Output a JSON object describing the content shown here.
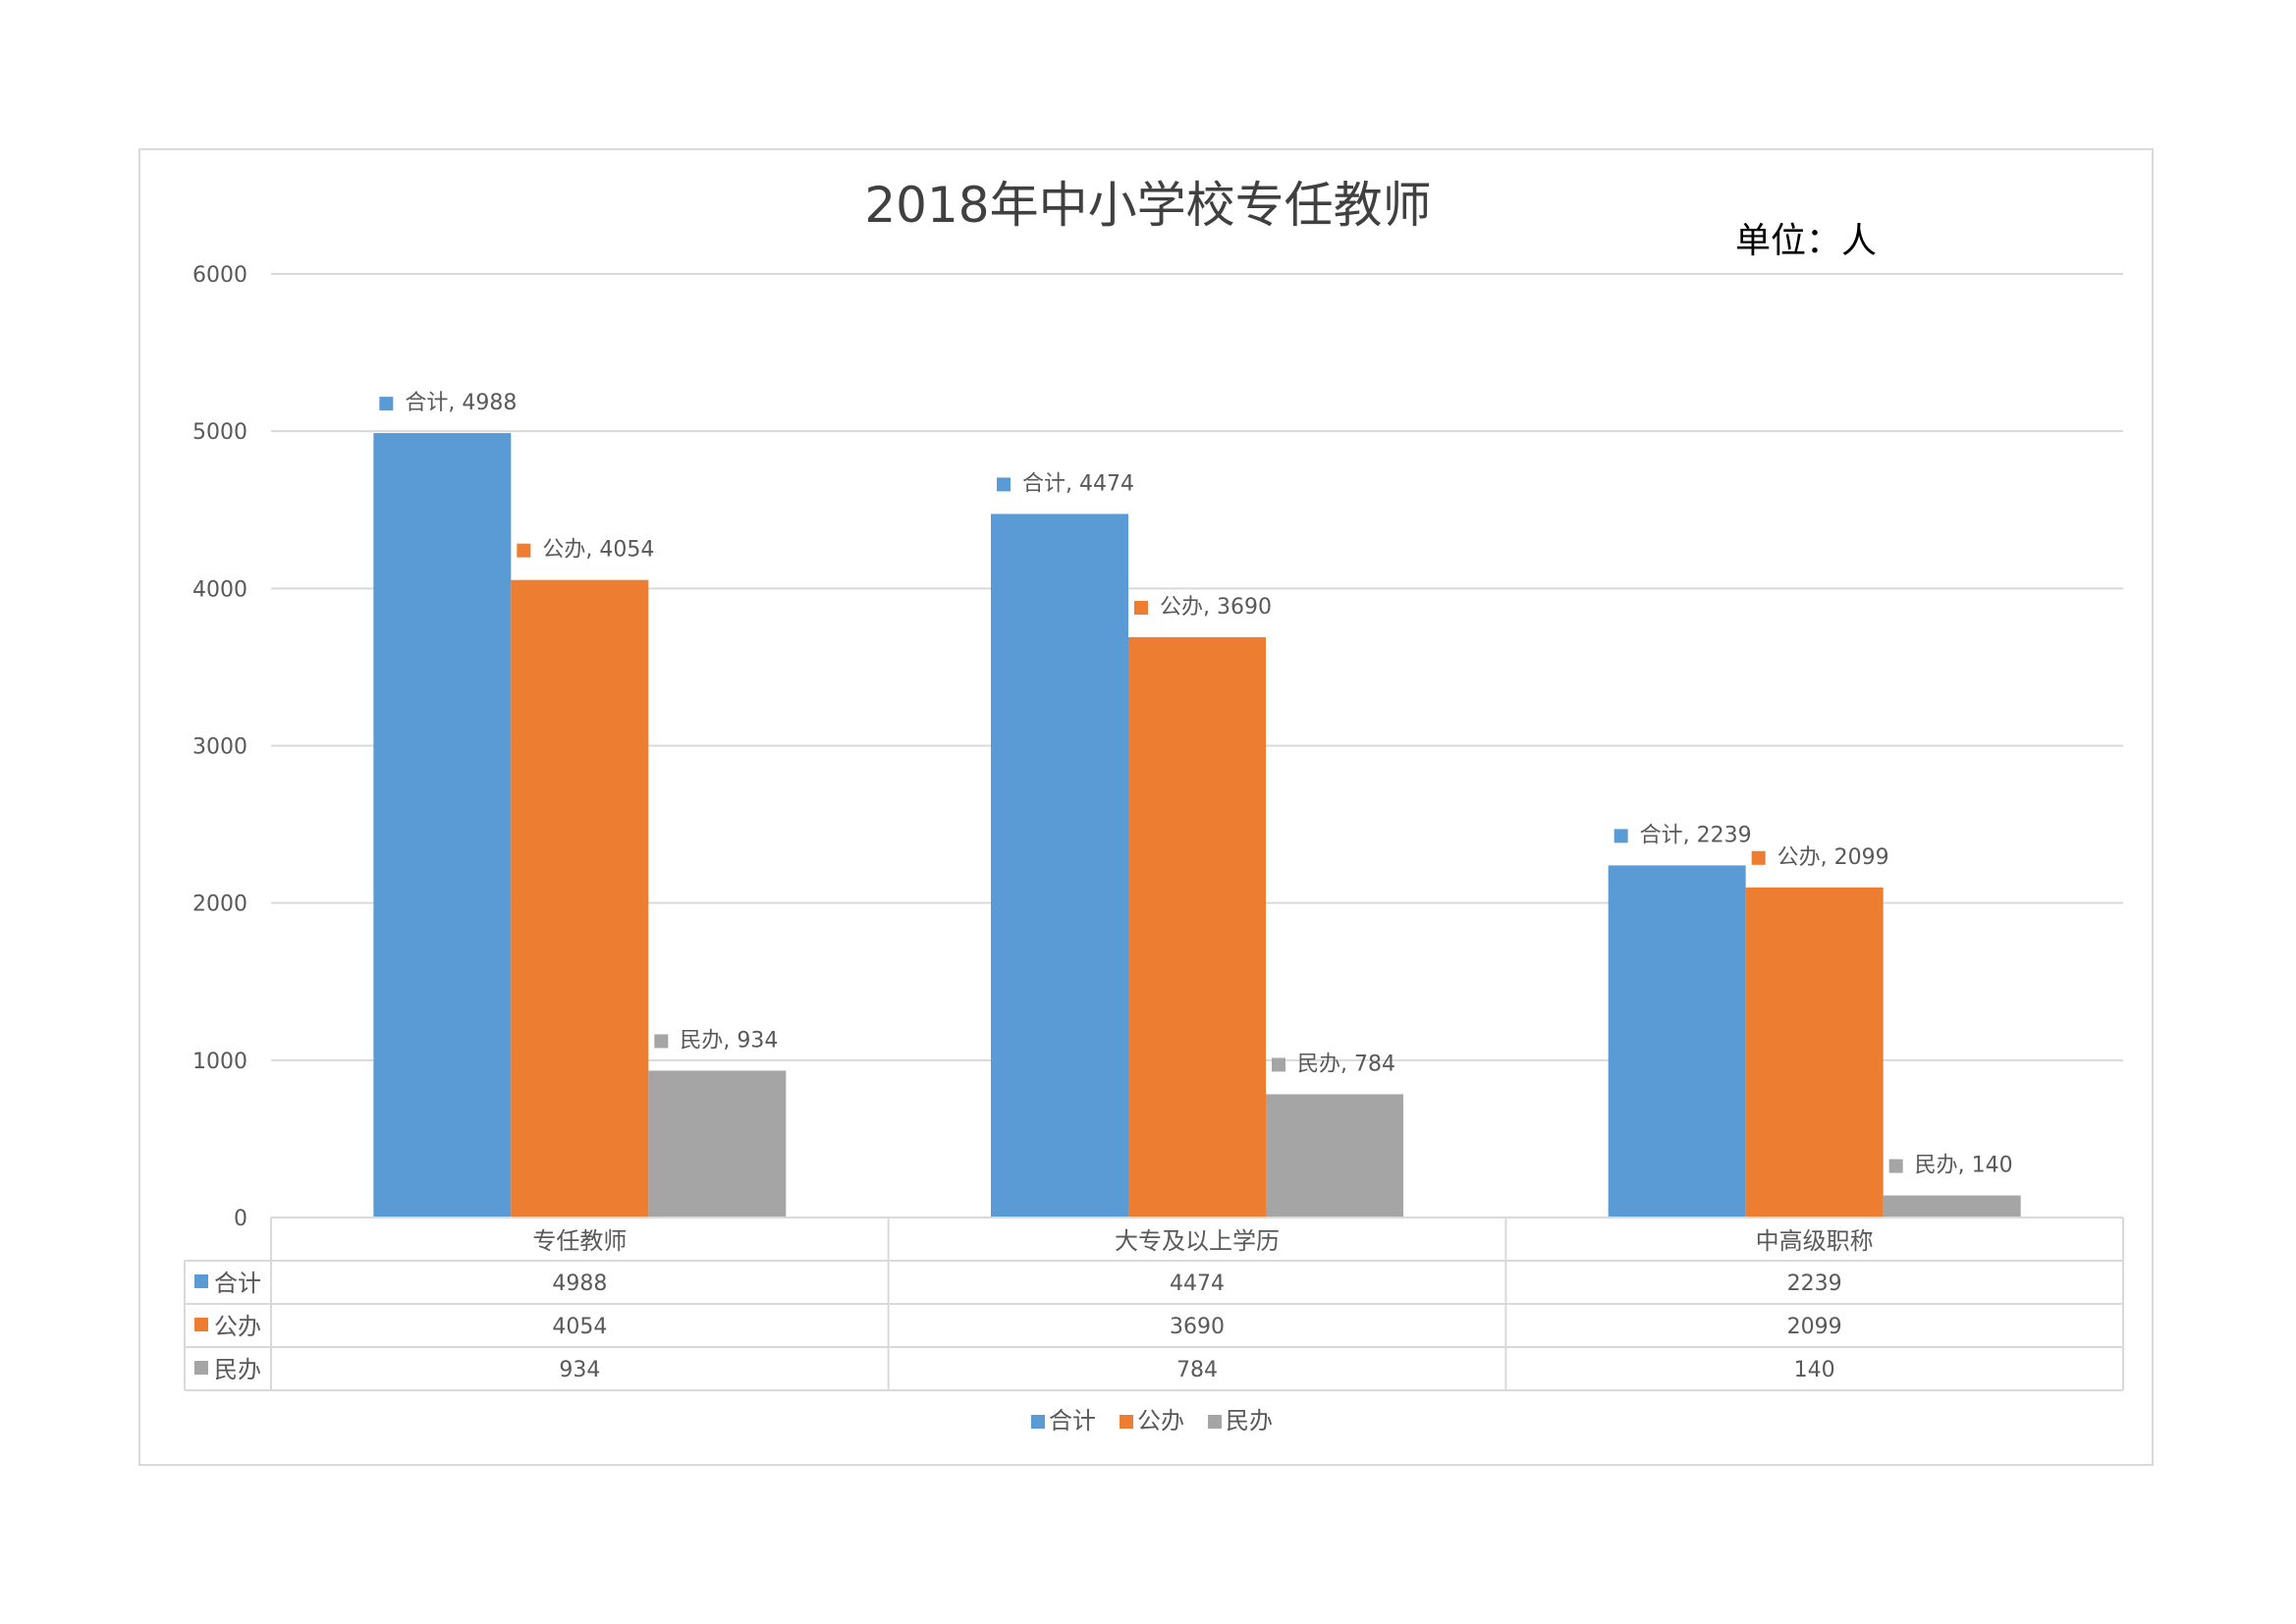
{
  "chart_data": {
    "type": "bar",
    "title": "2018年中小学校专任教师",
    "unit_label": "单位：人",
    "categories": [
      "专任教师",
      "大专及以上学历",
      "中高级职称"
    ],
    "series": [
      {
        "name": "合计",
        "values": [
          4988,
          4474,
          2239
        ]
      },
      {
        "name": "公办",
        "values": [
          4054,
          3690,
          2099
        ]
      },
      {
        "name": "民办",
        "values": [
          934,
          784,
          140
        ]
      }
    ],
    "ylim": [
      0,
      6000
    ],
    "yticks": [
      0,
      1000,
      2000,
      3000,
      4000,
      5000,
      6000
    ],
    "grid": true,
    "legend_position": "bottom",
    "data_table": true
  },
  "colors": {
    "series": [
      "#5b9bd5",
      "#ed7d31",
      "#a5a5a5"
    ],
    "grid": "#d9d9d9",
    "text": "#595959",
    "title": "#404040"
  }
}
